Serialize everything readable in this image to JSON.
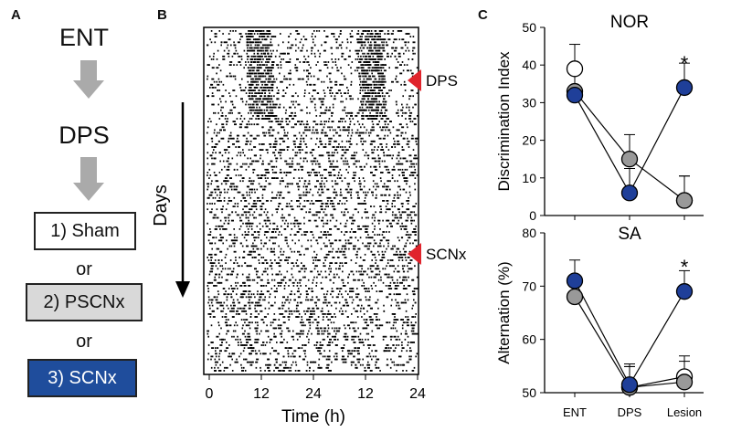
{
  "panel_a": {
    "letter": "A",
    "step1": "ENT",
    "step2": "DPS",
    "option1": "1) Sham",
    "or1": "or",
    "option2": "2) PSCNx",
    "or2": "or",
    "option3": "3) SCNx",
    "colors": {
      "arrow": "#aaaaaa",
      "option2_bg": "#d9d9d9",
      "option3_bg": "#1f4d9c"
    }
  },
  "panel_b": {
    "letter": "B",
    "days_label": "Days",
    "marker1": "DPS",
    "marker2": "SCNx",
    "marker_color": "#e0242c",
    "x_ticks": [
      "0",
      "12",
      "24",
      "12",
      "24"
    ],
    "xlabel": "Time (h)"
  },
  "panel_c": {
    "letter": "C"
  },
  "chart_data": [
    {
      "type": "line",
      "title": "NOR",
      "ylabel": "Discrimination Index",
      "categories": [
        "ENT",
        "DPS",
        "Lesion"
      ],
      "ylim": [
        0,
        50
      ],
      "yticks": [
        "0",
        "10",
        "20",
        "30",
        "40",
        "50"
      ],
      "series": [
        {
          "color": "#ffffff",
          "values": [
            39,
            null,
            4
          ]
        },
        {
          "color": "#999999",
          "values": [
            33,
            15,
            4
          ]
        },
        {
          "color": "#1f3f99",
          "values": [
            32,
            6,
            34
          ]
        }
      ],
      "annotation": "*"
    },
    {
      "type": "line",
      "title": "SA",
      "ylabel": "Alternation (%)",
      "categories": [
        "ENT",
        "DPS",
        "Lesion"
      ],
      "ylim": [
        50,
        80
      ],
      "yticks": [
        "50",
        "60",
        "70",
        "80"
      ],
      "series": [
        {
          "color": "#ffffff",
          "values": [
            null,
            51,
            53
          ]
        },
        {
          "color": "#999999",
          "values": [
            68,
            51,
            52
          ]
        },
        {
          "color": "#1f3f99",
          "values": [
            71,
            51.5,
            69
          ]
        }
      ],
      "annotation": "*"
    }
  ]
}
